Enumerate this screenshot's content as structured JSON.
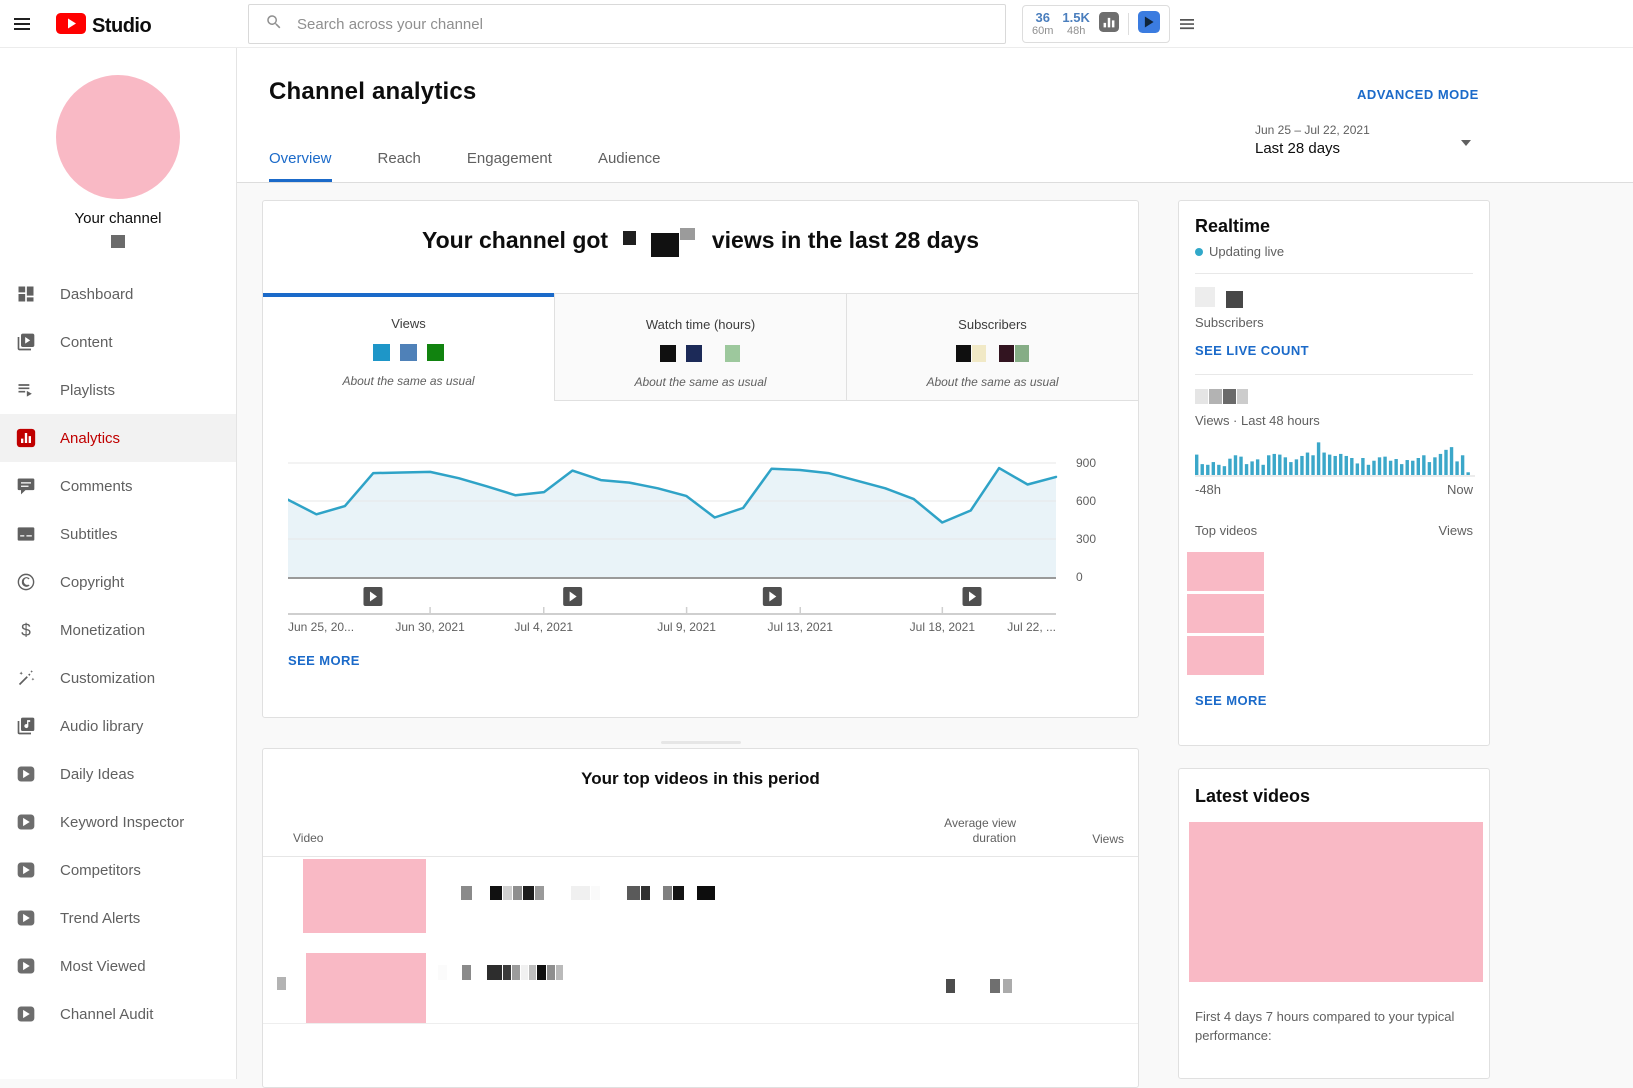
{
  "colors": {
    "accent_blue": "#1b6ac9",
    "youtube_red": "#ff0000",
    "active_item_red": "#c00000",
    "chart_line": "#2fa3c7",
    "chart_fill": "#e9f3f8",
    "realtime_bars": "#3ba7c9",
    "redacted_pink": "#f9b9c5",
    "live_dot": "#31a8c9"
  },
  "topbar": {
    "brand": "Studio",
    "search_placeholder": "Search across your channel",
    "widget": {
      "stats": [
        {
          "value": "36",
          "unit": "60m"
        },
        {
          "value": "1.5K",
          "unit": "48h"
        }
      ]
    }
  },
  "sidebar": {
    "channel_label": "Your channel",
    "channel_name_blocks": [
      {
        "c": "#6b6b6b",
        "w": 14,
        "h": 13
      }
    ],
    "items": [
      {
        "label": "Dashboard",
        "icon": "dashboard"
      },
      {
        "label": "Content",
        "icon": "content"
      },
      {
        "label": "Playlists",
        "icon": "playlists"
      },
      {
        "label": "Analytics",
        "icon": "analytics",
        "active": true
      },
      {
        "label": "Comments",
        "icon": "comments"
      },
      {
        "label": "Subtitles",
        "icon": "subtitles"
      },
      {
        "label": "Copyright",
        "icon": "copyright"
      },
      {
        "label": "Monetization",
        "icon": "monetization"
      },
      {
        "label": "Customization",
        "icon": "customization"
      },
      {
        "label": "Audio library",
        "icon": "audio-library"
      },
      {
        "label": "Daily Ideas",
        "icon": "vidiq"
      },
      {
        "label": "Keyword Inspector",
        "icon": "vidiq"
      },
      {
        "label": "Competitors",
        "icon": "vidiq"
      },
      {
        "label": "Trend Alerts",
        "icon": "vidiq"
      },
      {
        "label": "Most Viewed",
        "icon": "vidiq"
      },
      {
        "label": "Channel Audit",
        "icon": "vidiq"
      }
    ]
  },
  "header": {
    "title": "Channel analytics",
    "advanced_mode_label": "ADVANCED MODE",
    "tabs": [
      {
        "label": "Overview",
        "active": true
      },
      {
        "label": "Reach"
      },
      {
        "label": "Engagement"
      },
      {
        "label": "Audience"
      }
    ],
    "date_range": "Jun 25 – Jul 22, 2021",
    "date_preset": "Last 28 days"
  },
  "overview": {
    "headline_prefix": "Your channel got",
    "headline_suffix": "views in the last 28 days",
    "headline_blocks": [
      {
        "c": "#1f1f1f",
        "w": 13,
        "h": 14,
        "v": -4
      },
      {
        "c": "#111111",
        "w": 28,
        "h": 24,
        "ml": 14,
        "v": 3
      },
      {
        "c": "#9b9b9b",
        "w": 15,
        "h": 12,
        "v": -8
      }
    ],
    "metric_tabs": [
      {
        "label": "Views",
        "status": "About the same as usual",
        "active": true,
        "blocks": [
          {
            "c": "#1e96c8",
            "w": 17,
            "h": 17
          },
          {
            "c": "#4f81b8",
            "w": 17,
            "h": 17,
            "ml": 9
          },
          {
            "c": "#11830f",
            "w": 17,
            "h": 17,
            "ml": 9
          }
        ]
      },
      {
        "label": "Watch time (hours)",
        "status": "About the same as usual",
        "blocks": [
          {
            "c": "#101010",
            "w": 16,
            "h": 17
          },
          {
            "c": "#1c2a58",
            "w": 16,
            "h": 17,
            "ml": 9
          },
          {
            "c": "#9dc89d",
            "w": 15,
            "h": 17,
            "ml": 22
          }
        ]
      },
      {
        "label": "Subscribers",
        "status": "About the same as usual",
        "blocks": [
          {
            "c": "#0f0f0f",
            "w": 15,
            "h": 17
          },
          {
            "c": "#f1e9c6",
            "w": 14,
            "h": 17
          },
          {
            "c": "#321420",
            "w": 15,
            "h": 17,
            "ml": 12
          },
          {
            "c": "#86ad86",
            "w": 14,
            "h": 17
          }
        ]
      }
    ],
    "see_more": "SEE MORE"
  },
  "chart_data": [
    {
      "type": "line",
      "metric": "Views",
      "title": "Channel views, last 28 days",
      "x_start": "Jun 25, 2021",
      "x_end": "Jul 22, 2021",
      "values": [
        610,
        495,
        560,
        820,
        825,
        830,
        780,
        715,
        645,
        670,
        840,
        765,
        745,
        700,
        640,
        470,
        545,
        855,
        845,
        820,
        760,
        700,
        615,
        430,
        525,
        860,
        730,
        790
      ],
      "ylim": [
        0,
        900
      ],
      "y_ticks": [
        900,
        600,
        300,
        0
      ],
      "x_tick_labels": [
        "Jun 25, 20...",
        "Jun 30, 2021",
        "Jul 4, 2021",
        "Jul 9, 2021",
        "Jul 13, 2021",
        "Jul 18, 2021",
        "Jul 22, ..."
      ],
      "x_tick_pct": [
        0,
        18.5,
        33.3,
        51.9,
        66.7,
        85.2,
        100
      ],
      "marker_positions_pct": [
        11,
        37,
        63,
        89
      ],
      "line_color": "#2fa3c7",
      "fill_color": "#e9f3f8",
      "grid": true,
      "legend": false
    },
    {
      "type": "bar",
      "metric": "Views · Last 48 hours",
      "values": [
        60,
        32,
        30,
        38,
        30,
        26,
        48,
        58,
        54,
        32,
        40,
        46,
        30,
        58,
        62,
        60,
        52,
        38,
        46,
        56,
        66,
        58,
        96,
        66,
        60,
        56,
        62,
        56,
        50,
        34,
        50,
        30,
        42,
        52,
        54,
        42,
        47,
        32,
        44,
        42,
        50,
        58,
        38,
        52,
        62,
        74,
        82,
        40,
        58,
        8
      ],
      "ylim": [
        0,
        100
      ],
      "axis_left": "-48h",
      "axis_right": "Now",
      "bar_color": "#3ba7c9",
      "grid": false,
      "legend": false
    }
  ],
  "realtime": {
    "title": "Realtime",
    "live_status": "Updating live",
    "subscriber_blocks": [
      {
        "c": "#ededed",
        "w": 20,
        "h": 20
      },
      {
        "c": "#474747",
        "w": 17,
        "h": 17,
        "ml": 10,
        "v": 2
      }
    ],
    "subscribers_label": "Subscribers",
    "see_live_count": "SEE LIVE COUNT",
    "views_value_blocks": [
      {
        "c": "#e5e5e5",
        "w": 13,
        "h": 15
      },
      {
        "c": "#b3b3b3",
        "w": 13,
        "h": 15
      },
      {
        "c": "#6a6a6a",
        "w": 13,
        "h": 15
      },
      {
        "c": "#cccccc",
        "w": 11,
        "h": 15
      }
    ],
    "views_caption": "Views · Last 48 hours",
    "axis_left": "-48h",
    "axis_right": "Now",
    "top_videos_label": "Top videos",
    "views_column_label": "Views",
    "see_more": "SEE MORE"
  },
  "top_videos": {
    "heading": "Your top videos in this period",
    "columns": [
      "Video",
      "Average view duration",
      "Views"
    ],
    "rows": [
      {
        "title_blocks": [
          {
            "c": "#8a8a8a",
            "w": 11,
            "h": 14
          },
          {
            "c": "#111111",
            "w": 12,
            "h": 14,
            "ml": 17
          },
          {
            "c": "#cfcfcf",
            "w": 9,
            "h": 14
          },
          {
            "c": "#8e8e8e",
            "w": 9,
            "h": 14
          },
          {
            "c": "#1d1d1d",
            "w": 11,
            "h": 14
          },
          {
            "c": "#9a9a9a",
            "w": 9,
            "h": 14
          },
          {
            "c": "#f0f0f0",
            "w": 19,
            "h": 14,
            "ml": 26
          },
          {
            "c": "#fafafa",
            "w": 9,
            "h": 14
          },
          {
            "c": "#5a5a5a",
            "w": 13,
            "h": 14,
            "ml": 26
          },
          {
            "c": "#303030",
            "w": 9,
            "h": 14
          },
          {
            "c": "#808080",
            "w": 9,
            "h": 14,
            "ml": 12
          },
          {
            "c": "#141414",
            "w": 11,
            "h": 14
          },
          {
            "c": "#0d0d0d",
            "w": 18,
            "h": 14,
            "ml": 12
          }
        ]
      },
      {
        "rank_blocks": [
          {
            "c": "#b3b3b3",
            "w": 9,
            "h": 13
          }
        ],
        "title_blocks": [
          {
            "c": "#fbfbfb",
            "w": 9,
            "h": 15
          },
          {
            "c": "#8a8a8a",
            "w": 9,
            "h": 15,
            "ml": 14
          },
          {
            "c": "#2d2d2d",
            "w": 15,
            "h": 15,
            "ml": 15
          },
          {
            "c": "#3b3b3b",
            "w": 8,
            "h": 15
          },
          {
            "c": "#9c9c9c",
            "w": 8,
            "h": 15
          },
          {
            "c": "#f1f1f1",
            "w": 7,
            "h": 15
          },
          {
            "c": "#bdbdbd",
            "w": 7,
            "h": 15
          },
          {
            "c": "#101010",
            "w": 9,
            "h": 15
          },
          {
            "c": "#8f8f8f",
            "w": 8,
            "h": 15
          },
          {
            "c": "#bababa",
            "w": 7,
            "h": 15
          }
        ],
        "duration_blocks": [
          {
            "c": "#4c4c4c",
            "w": 9,
            "h": 14
          }
        ],
        "views_blocks": [
          {
            "c": "#6f6f6f",
            "w": 10,
            "h": 14
          },
          {
            "c": "#ababab",
            "w": 9,
            "h": 14,
            "ml": 2
          }
        ]
      }
    ]
  },
  "latest_videos": {
    "title": "Latest videos",
    "footnote": "First 4 days 7 hours compared to your typical performance:"
  }
}
